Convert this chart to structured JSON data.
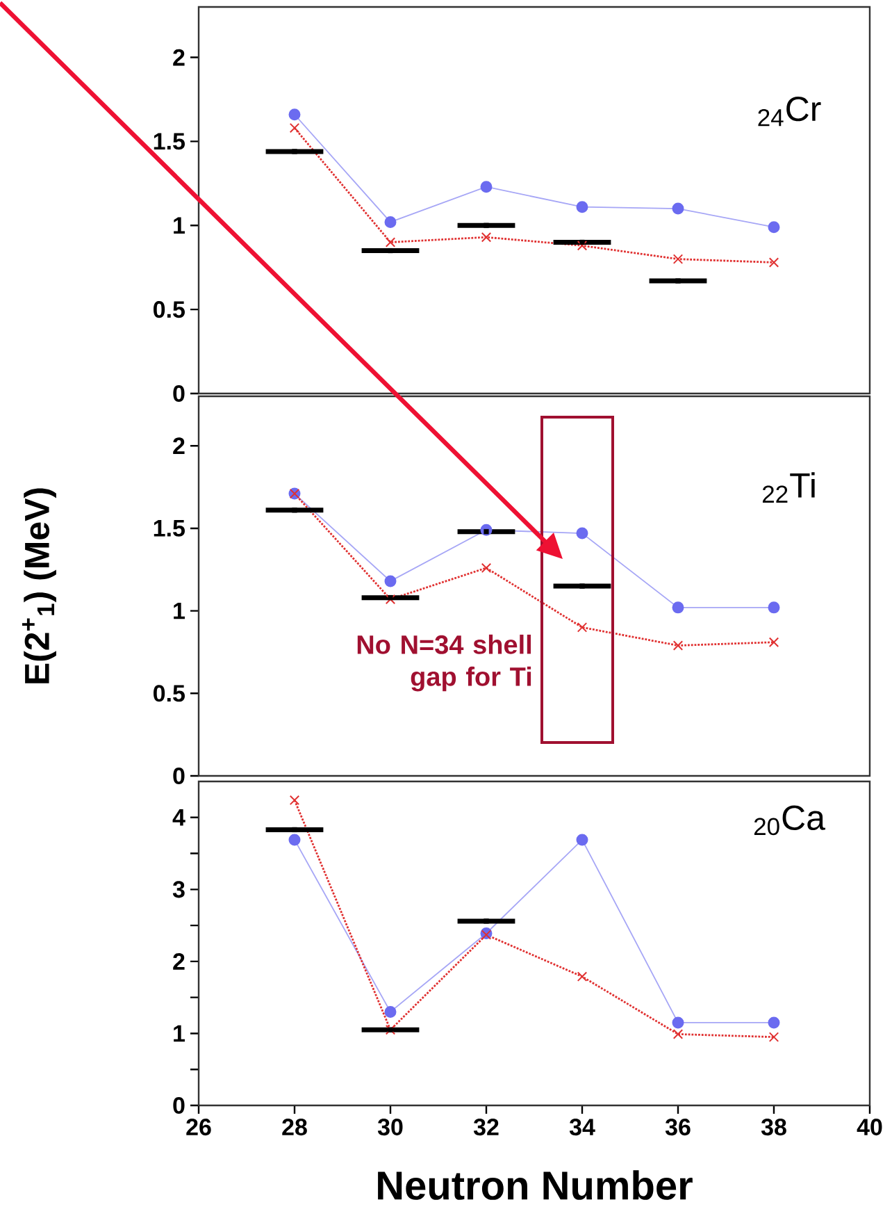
{
  "chart_data": [
    {
      "type": "line",
      "x": [
        28,
        30,
        32,
        34,
        36,
        38
      ],
      "xlim": [
        26,
        40
      ],
      "xticks": [
        26,
        28,
        30,
        32,
        34,
        36,
        38,
        40
      ],
      "ylim": [
        0,
        2.3
      ],
      "yticks": [
        0,
        0.5,
        1,
        1.5,
        2
      ],
      "tick_labels": "y",
      "annotations": [
        "$_{24}$Cr"
      ],
      "series": [
        {
          "color": "#6b6bf0",
          "marker": "circle",
          "line_style": "solid",
          "values": [
            1.66,
            1.02,
            1.23,
            1.11,
            1.1,
            0.99
          ]
        },
        {
          "color": "#e03030",
          "marker": "cross",
          "line_style": "dotted",
          "values": [
            1.58,
            0.9,
            0.93,
            0.88,
            0.8,
            0.78
          ]
        },
        {
          "type": "scatter",
          "color": "#000000",
          "marker": "square",
          "values": [
            1.44,
            0.85,
            1.0,
            0.9,
            0.67,
            null
          ],
          "xerrors": [
            0.6,
            0.6,
            0.6,
            0.6,
            0.6,
            null
          ]
        }
      ]
    },
    {
      "type": "line",
      "x": [
        28,
        30,
        32,
        34,
        36,
        38
      ],
      "xlim": [
        26,
        40
      ],
      "xticks": [
        26,
        28,
        30,
        32,
        34,
        36,
        38,
        40
      ],
      "ylim": [
        0,
        2.3
      ],
      "yticks": [
        0,
        0.5,
        1,
        1.5,
        2
      ],
      "tick_labels": "y",
      "ylabel": "E(2$^{+}$$_{1}$)  (MeV)",
      "annotations": [
        "$_{22}$Ti",
        "No N=34 shell gap for Ti"
      ],
      "series": [
        {
          "color": "#6b6bf0",
          "marker": "circle",
          "line_style": "solid",
          "values": [
            1.71,
            1.18,
            1.49,
            1.47,
            1.02,
            1.02
          ]
        },
        {
          "color": "#e03030",
          "marker": "cross",
          "line_style": "dotted",
          "values": [
            1.71,
            1.07,
            1.26,
            0.9,
            0.79,
            0.81
          ]
        },
        {
          "type": "scatter",
          "color": "#000000",
          "marker": "square",
          "values": [
            1.61,
            1.08,
            1.48,
            1.15,
            null,
            null
          ],
          "xerrors": [
            0.6,
            0.6,
            0.6,
            0.6,
            null,
            null
          ]
        }
      ]
    },
    {
      "type": "line",
      "x": [
        28,
        30,
        32,
        34,
        36,
        38
      ],
      "xlim": [
        26,
        40
      ],
      "xticks": [
        26,
        28,
        30,
        32,
        34,
        36,
        38,
        40
      ],
      "ylim": [
        0,
        4.5
      ],
      "yticks": [
        0,
        {
          "value": 0.5,
          "label": null
        },
        1,
        {
          "value": 1.5,
          "label": null
        },
        2,
        {
          "value": 2.5,
          "label": null
        },
        3,
        {
          "value": 3.5,
          "label": null
        },
        4
      ],
      "xlabel": "Neutron Number",
      "annotations": [
        "$_{20}$Ca"
      ],
      "series": [
        {
          "color": "#6b6bf0",
          "marker": "circle",
          "line_style": "solid",
          "values": [
            3.69,
            1.3,
            2.39,
            3.69,
            1.15,
            1.15
          ]
        },
        {
          "color": "#e03030",
          "marker": "cross",
          "line_style": "dotted",
          "values": [
            4.24,
            1.05,
            2.37,
            1.79,
            0.99,
            0.95
          ]
        },
        {
          "type": "scatter",
          "color": "#000000",
          "marker": "square",
          "values": [
            3.83,
            1.05,
            2.56,
            null,
            null,
            null
          ],
          "xerrors": [
            0.6,
            0.6,
            0.6,
            null,
            null,
            null
          ]
        }
      ]
    }
  ]
}
